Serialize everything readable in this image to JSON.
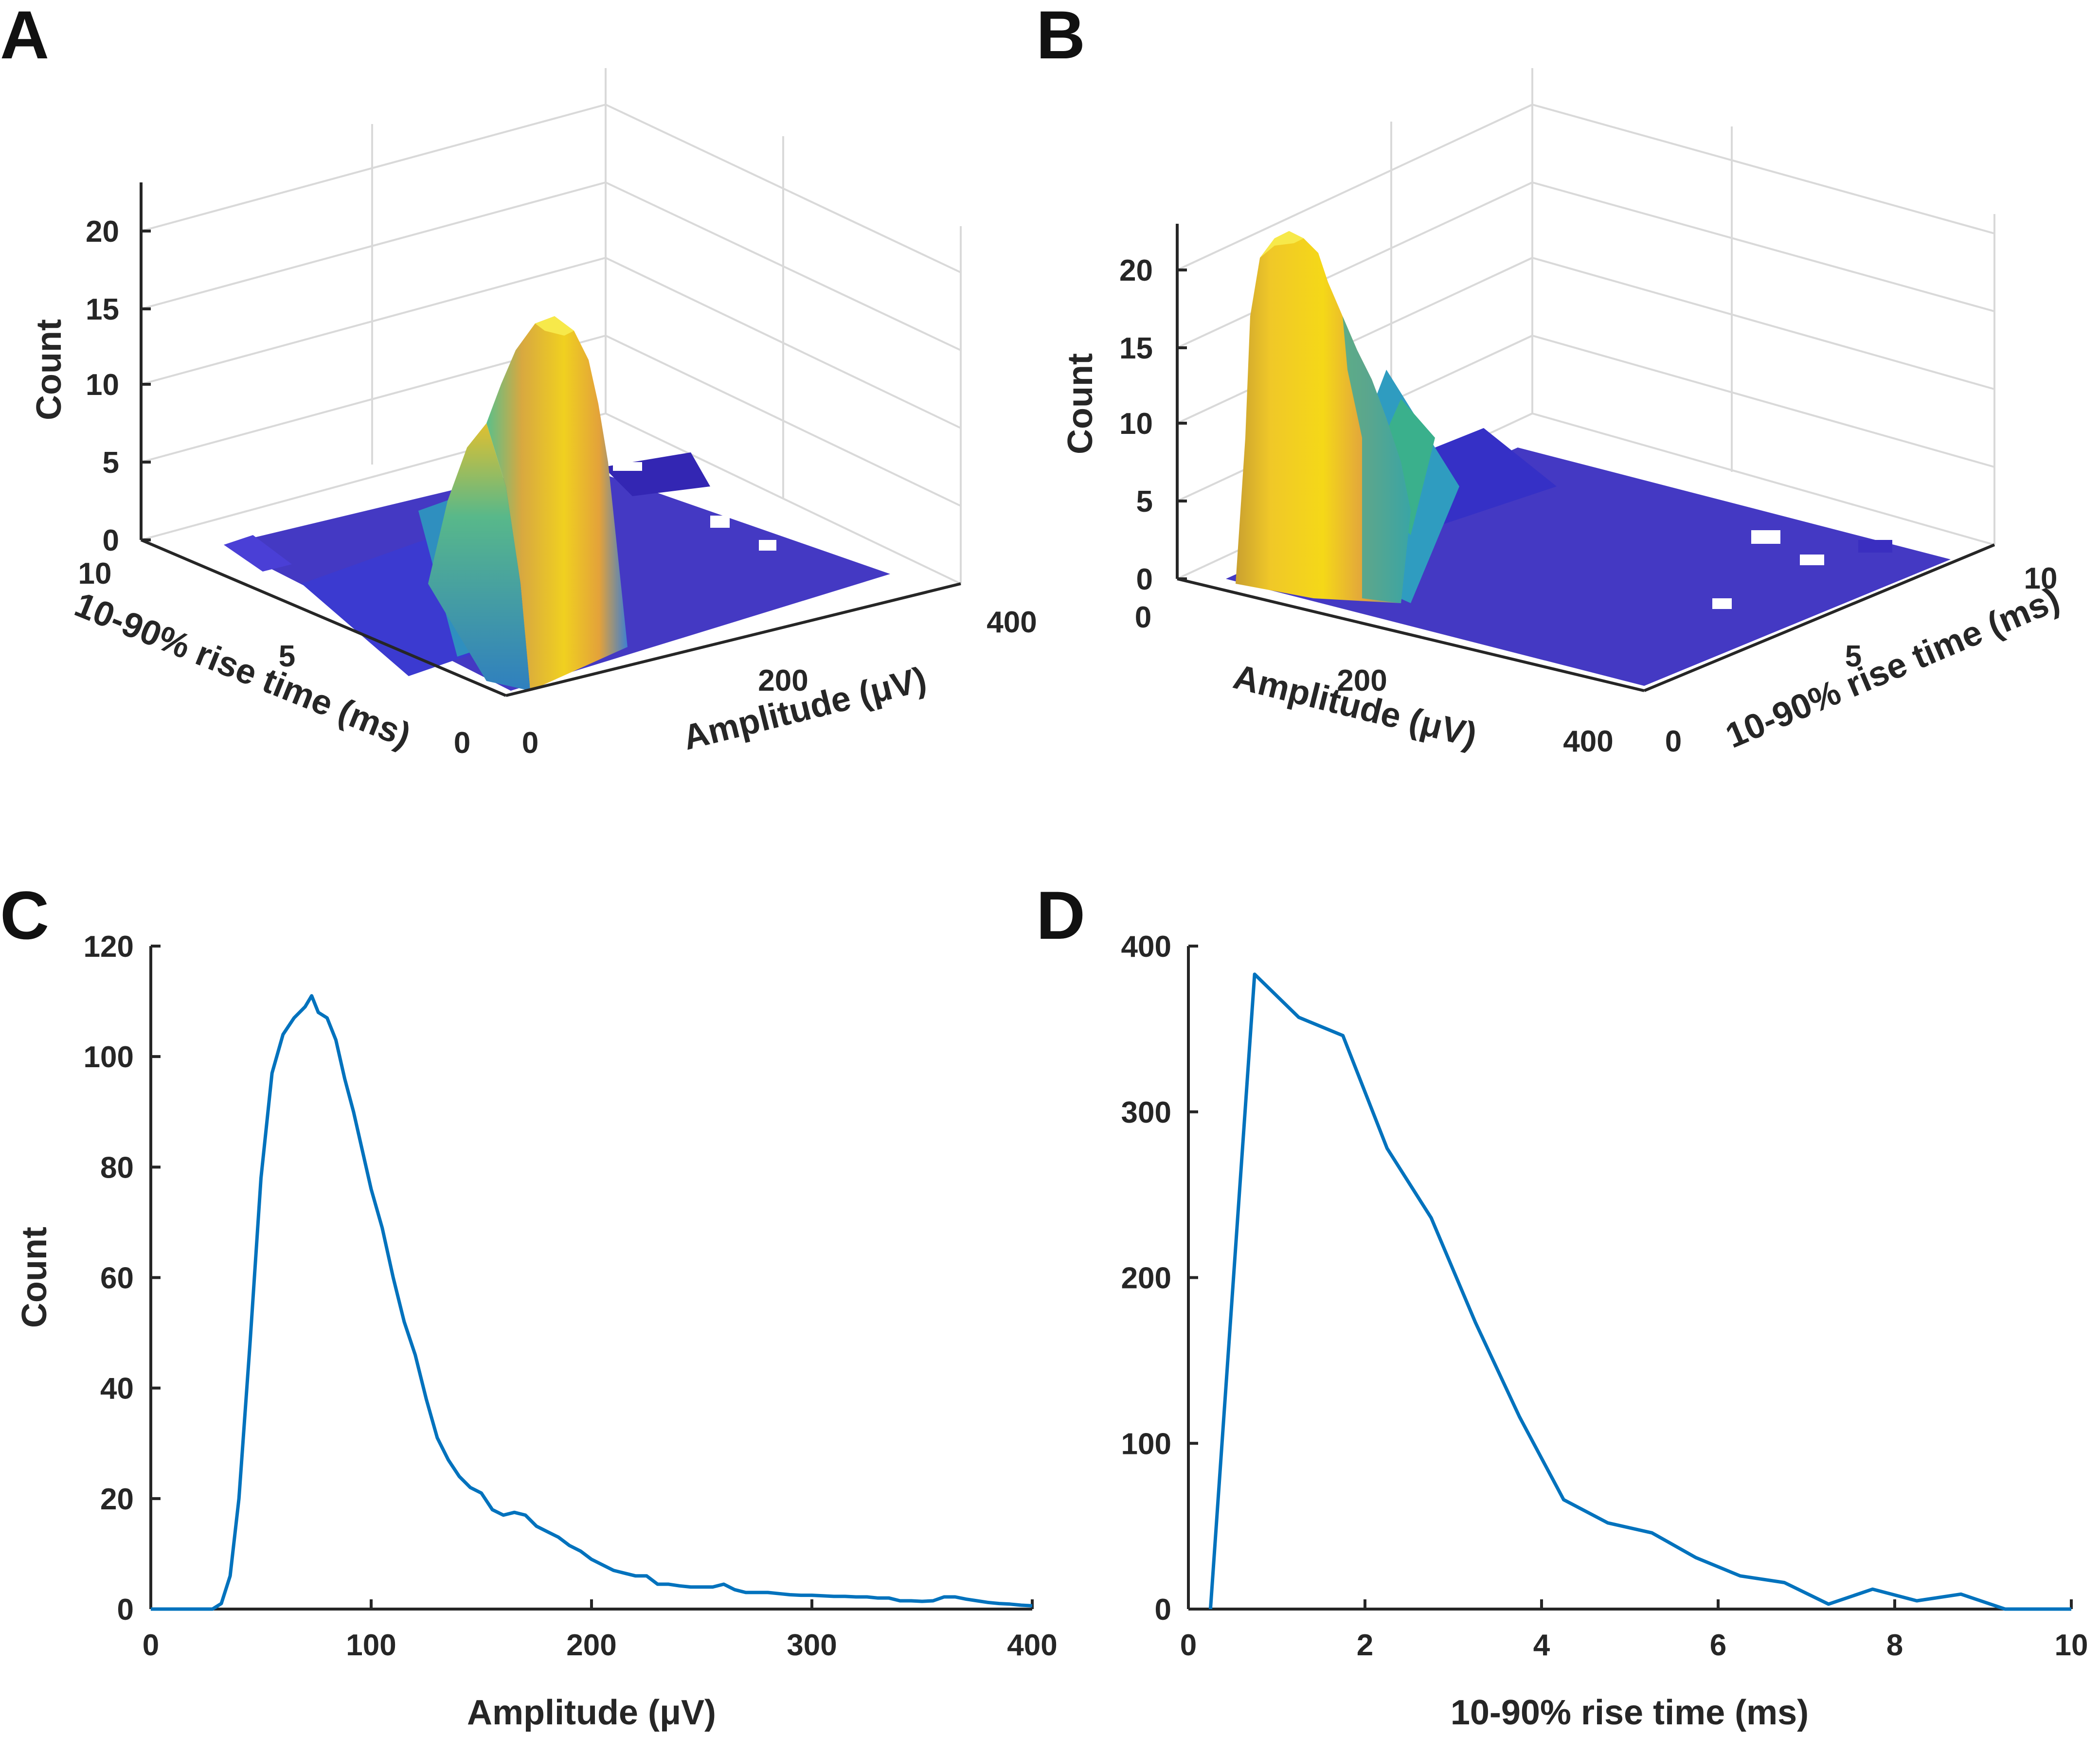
{
  "colors": {
    "series": "#0072BD",
    "axis": "#262626",
    "grid": "#d9d9d9"
  },
  "chart_data": [
    {
      "panel": "A",
      "type": "bar3d",
      "xlabel": "Amplitude (μV)",
      "ylabel": "10-90% rise time (ms)",
      "zlabel": "Count",
      "xticks": [
        "0",
        "200",
        "400"
      ],
      "yticks": [
        "0",
        "5",
        "10"
      ],
      "zticks": [
        "0",
        "5",
        "10",
        "15",
        "20"
      ],
      "xlim": [
        0,
        400
      ],
      "ylim": [
        0,
        10
      ],
      "zlim": [
        0,
        22
      ],
      "peak": {
        "amplitude": 70,
        "rise_time": 1.0,
        "count": 15.5
      },
      "view": "viewed from low rise time corner"
    },
    {
      "panel": "B",
      "type": "bar3d",
      "xlabel": "Amplitude (μV)",
      "ylabel": "10-90% rise time (ms)",
      "zlabel": "Count",
      "xticks": [
        "0",
        "200",
        "400"
      ],
      "yticks": [
        "0",
        "5",
        "10"
      ],
      "zticks": [
        "0",
        "5",
        "10",
        "15",
        "20"
      ],
      "xlim": [
        0,
        400
      ],
      "ylim": [
        0,
        10
      ],
      "zlim": [
        0,
        22
      ],
      "peak": {
        "amplitude": 70,
        "rise_time": 1.0,
        "count": 22
      },
      "view": "viewed from low amplitude corner"
    },
    {
      "panel": "C",
      "type": "line",
      "xlabel": "Amplitude (μV)",
      "ylabel": "Count",
      "xlim": [
        0,
        400
      ],
      "ylim": [
        0,
        120
      ],
      "xticks": [
        "0",
        "100",
        "200",
        "300",
        "400"
      ],
      "yticks": [
        "0",
        "20",
        "40",
        "60",
        "80",
        "100",
        "120"
      ],
      "x": [
        0,
        5,
        10,
        15,
        20,
        25,
        28,
        32,
        36,
        40,
        45,
        50,
        55,
        60,
        65,
        70,
        73,
        76,
        80,
        84,
        88,
        92,
        96,
        100,
        105,
        110,
        115,
        120,
        125,
        130,
        135,
        140,
        145,
        150,
        155,
        160,
        165,
        170,
        175,
        180,
        185,
        190,
        195,
        200,
        205,
        210,
        215,
        220,
        225,
        230,
        235,
        240,
        245,
        250,
        255,
        260,
        265,
        270,
        275,
        280,
        285,
        290,
        295,
        300,
        305,
        310,
        315,
        320,
        325,
        330,
        335,
        340,
        345,
        350,
        355,
        360,
        365,
        370,
        375,
        380,
        385,
        390,
        395,
        400
      ],
      "y": [
        0,
        0,
        0,
        0,
        0,
        0,
        0,
        1,
        6,
        20,
        48,
        78,
        97,
        104,
        107,
        109,
        111,
        108,
        107,
        103,
        96,
        90,
        83,
        76,
        69,
        60,
        52,
        46,
        38,
        31,
        27,
        24,
        22,
        21,
        18,
        17,
        17.5,
        17,
        15,
        14,
        13,
        11.5,
        10.5,
        9,
        8,
        7,
        6.5,
        6,
        6,
        4.5,
        4.5,
        4.2,
        4,
        4,
        4,
        4.5,
        3.5,
        3,
        3,
        3,
        2.8,
        2.6,
        2.5,
        2.5,
        2.4,
        2.3,
        2.3,
        2.2,
        2.2,
        2,
        2,
        1.5,
        1.5,
        1.4,
        1.5,
        2.2,
        2.2,
        1.8,
        1.5,
        1.2,
        1,
        0.9,
        0.7,
        0.6
      ]
    },
    {
      "panel": "D",
      "type": "line",
      "xlabel": "10-90% rise time (ms)",
      "ylabel": "",
      "xlim": [
        0,
        10
      ],
      "ylim": [
        0,
        400
      ],
      "xticks": [
        "0",
        "2",
        "4",
        "6",
        "8",
        "10"
      ],
      "yticks": [
        "0",
        "100",
        "200",
        "300",
        "400"
      ],
      "x": [
        0.25,
        0.75,
        1.25,
        1.75,
        2.25,
        2.75,
        3.25,
        3.75,
        4.25,
        4.75,
        5.25,
        5.75,
        6.25,
        6.75,
        7.25,
        7.75,
        8.25,
        8.75,
        9.25,
        9.75,
        10
      ],
      "y": [
        0,
        383,
        357,
        346,
        278,
        236,
        173,
        116,
        66,
        52,
        46,
        31,
        20,
        16,
        3,
        12,
        5,
        9,
        0,
        0,
        0
      ]
    }
  ]
}
